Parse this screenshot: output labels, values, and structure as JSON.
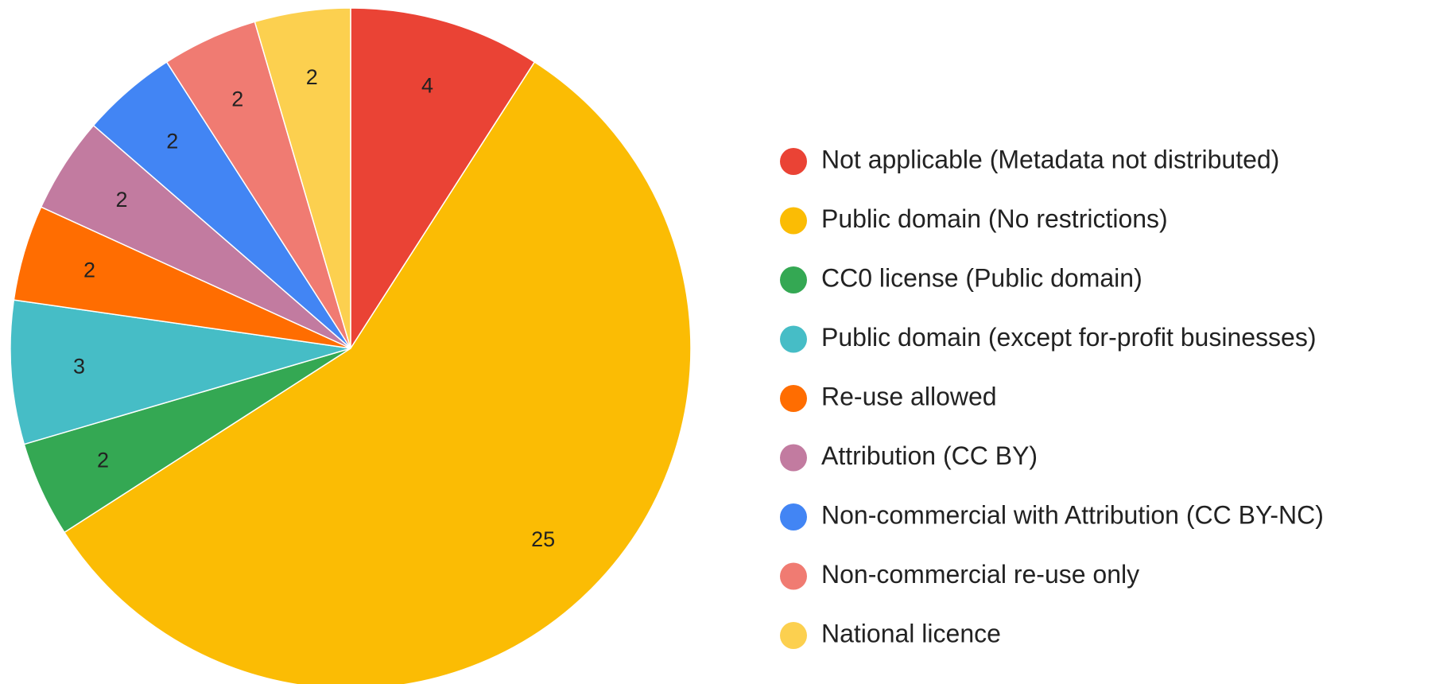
{
  "chart_data": {
    "type": "pie",
    "categories": [
      "Not applicable (Metadata not distributed)",
      "Public domain (No restrictions)",
      "CC0 license (Public domain)",
      "Public domain (except for-profit businesses)",
      "Re-use allowed",
      "Attribution (CC BY)",
      "Non-commercial with Attribution (CC BY-NC)",
      "Non-commercial re-use only",
      "National licence"
    ],
    "values": [
      4,
      25,
      2,
      3,
      2,
      2,
      2,
      2,
      2
    ],
    "colors": [
      "#ea4335",
      "#fbbc04",
      "#34a853",
      "#46bdc6",
      "#ff6d01",
      "#c27ba0",
      "#4285f4",
      "#f07b72",
      "#fcd04f"
    ],
    "legend": "right"
  }
}
